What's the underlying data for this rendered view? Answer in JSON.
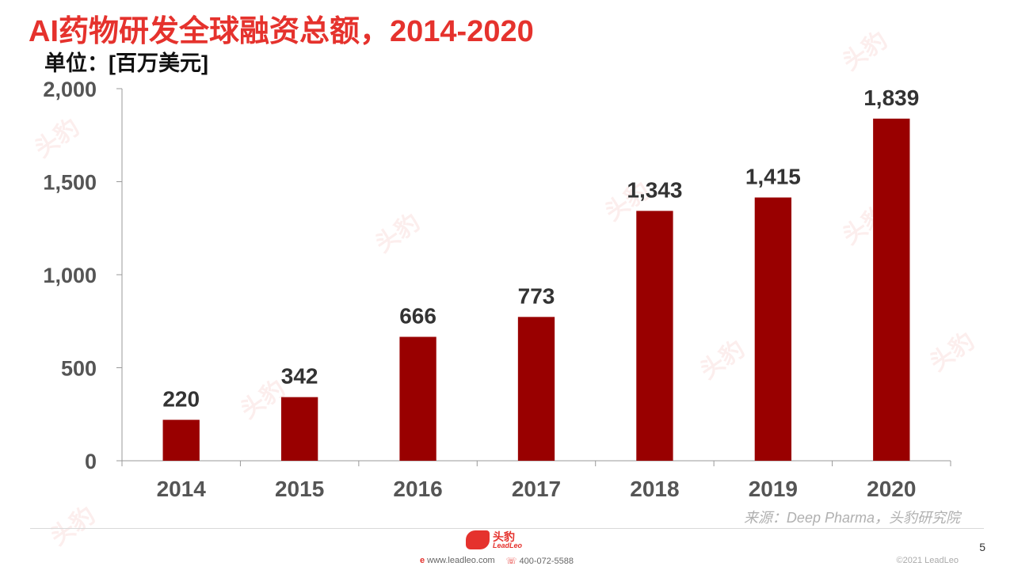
{
  "title": "AI药物研发全球融资总额，2014-2020",
  "unit": "单位：[百万美元]",
  "source": "来源：Deep Pharma，头豹研究院",
  "page_number": "5",
  "footer": {
    "logo_cn": "头豹",
    "logo_en": "LeadLeo",
    "website": "www.leadleo.com",
    "phone": "400-072-5588",
    "copyright": "©2021 LeadLeo"
  },
  "watermark": "头豹",
  "colors": {
    "bar": "#990000",
    "title": "#e5322d",
    "axis": "#999999"
  },
  "chart_data": {
    "type": "bar",
    "categories": [
      "2014",
      "2015",
      "2016",
      "2017",
      "2018",
      "2019",
      "2020"
    ],
    "values": [
      220,
      342,
      666,
      773,
      1343,
      1415,
      1839
    ],
    "data_labels": [
      "220",
      "342",
      "666",
      "773",
      "1,343",
      "1,415",
      "1,839"
    ],
    "title": "",
    "xlabel": "",
    "ylabel": "",
    "ylim": [
      0,
      2000
    ],
    "yticks": [
      0,
      500,
      1000,
      1500,
      2000
    ],
    "ytick_labels": [
      "0",
      "500",
      "1,000",
      "1,500",
      "2,000"
    ],
    "grid": false,
    "legend": "none"
  }
}
